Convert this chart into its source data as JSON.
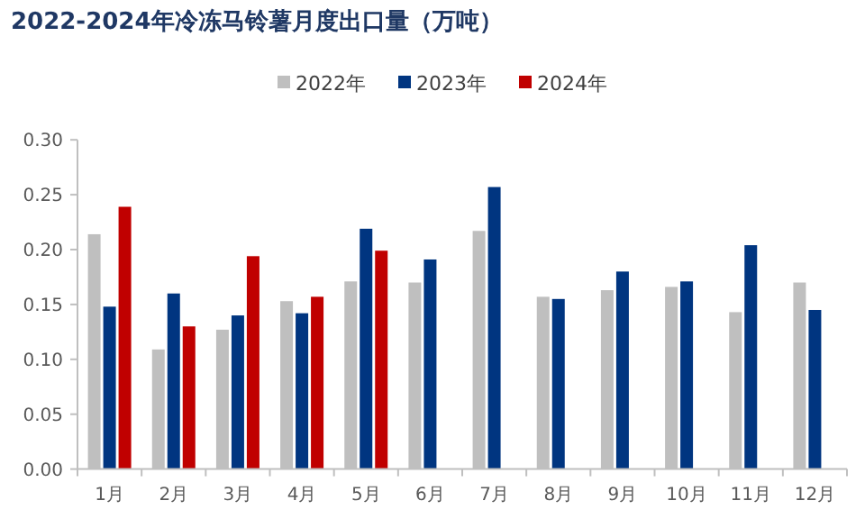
{
  "chart_data": {
    "type": "bar",
    "title": "2022-2024年冷冻马铃薯月度出口量（万吨）",
    "categories": [
      "1月",
      "2月",
      "3月",
      "4月",
      "5月",
      "6月",
      "7月",
      "8月",
      "9月",
      "10月",
      "11月",
      "12月"
    ],
    "series": [
      {
        "name": "2022年",
        "color": "#bfbfbf",
        "values": [
          0.214,
          0.109,
          0.127,
          0.153,
          0.171,
          0.17,
          0.217,
          0.157,
          0.163,
          0.166,
          0.143,
          0.17
        ]
      },
      {
        "name": "2023年",
        "color": "#003580",
        "values": [
          0.148,
          0.16,
          0.14,
          0.142,
          0.219,
          0.191,
          0.257,
          0.155,
          0.18,
          0.171,
          0.204,
          0.145
        ]
      },
      {
        "name": "2024年",
        "color": "#c00000",
        "values": [
          0.239,
          0.13,
          0.194,
          0.157,
          0.199,
          null,
          null,
          null,
          null,
          null,
          null,
          null
        ]
      }
    ],
    "ylim": [
      0,
      0.3
    ],
    "yticks": [
      {
        "value": 0,
        "label": "0.00"
      },
      {
        "value": 0.05,
        "label": "0.05"
      },
      {
        "value": 0.1,
        "label": "0.10"
      },
      {
        "value": 0.15,
        "label": "0.15"
      },
      {
        "value": 0.2,
        "label": "0.20"
      },
      {
        "value": 0.25,
        "label": "0.25"
      },
      {
        "value": 0.3,
        "label": "0.30"
      }
    ],
    "grid": false,
    "legend": "top"
  }
}
